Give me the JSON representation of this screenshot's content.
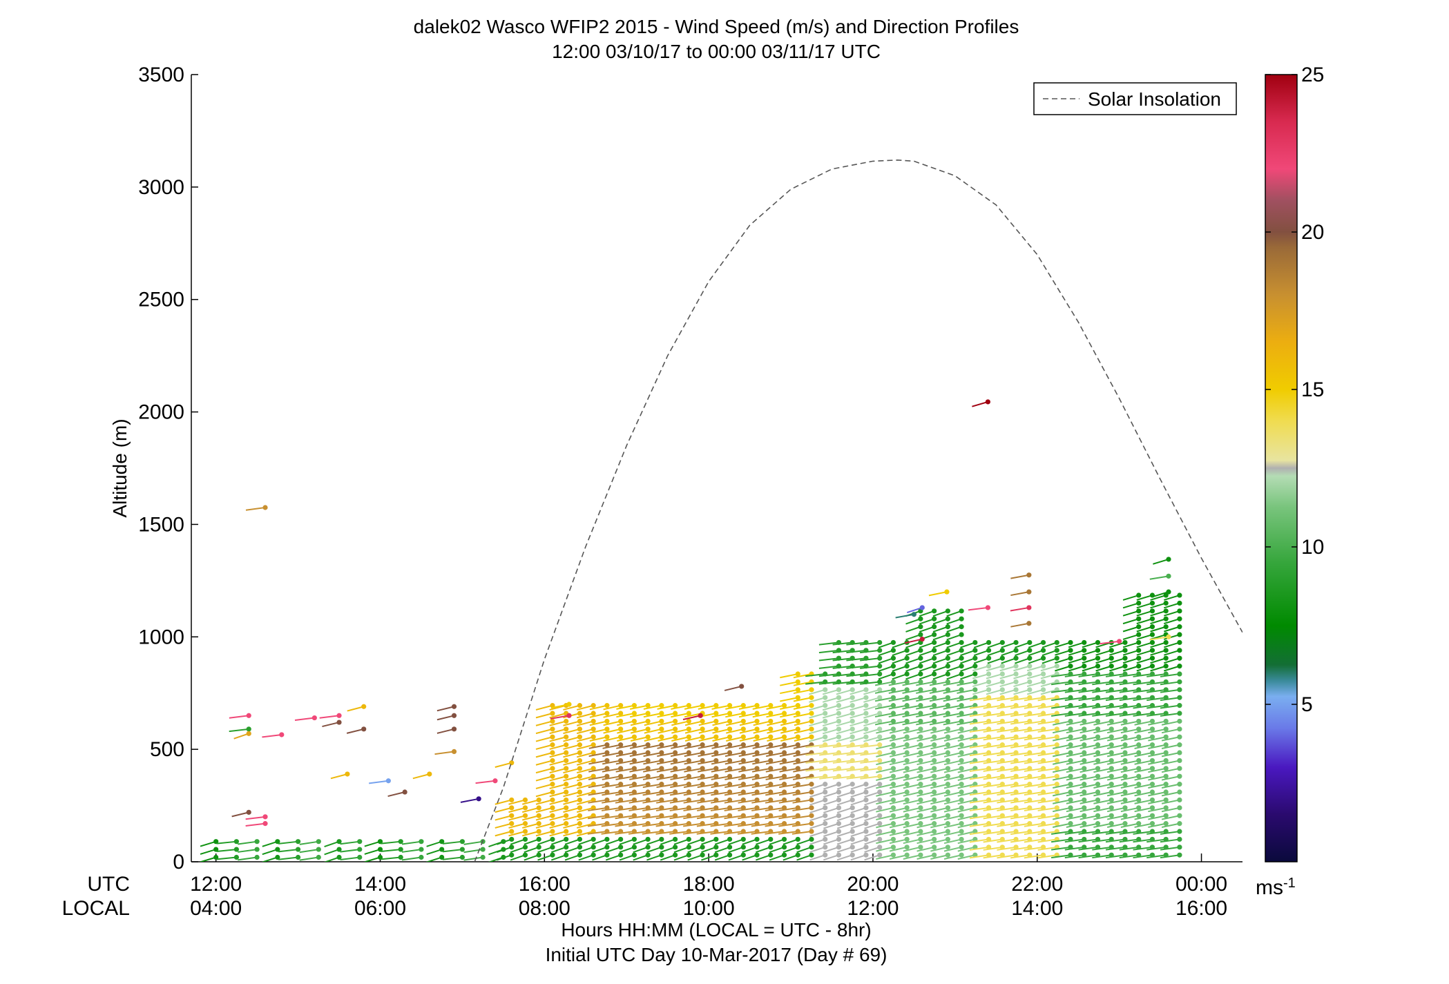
{
  "chart_data": {
    "type": "scatter",
    "title": "dalek02 Wasco WFIP2 2015 - Wind Speed (m/s) and Direction Profiles",
    "subtitle": "12:00 03/10/17 to 00:00 03/11/17  UTC",
    "ylabel": "Altitude (m)",
    "xlabel": "Hours HH:MM  (LOCAL = UTC - 8hr)",
    "xlabel2": "Initial UTC Day 10-Mar-2017 (Day # 69)",
    "row_label_utc": "UTC",
    "row_label_local": "LOCAL",
    "xlim": [
      11.7,
      24.5
    ],
    "ylim": [
      0,
      3500
    ],
    "yticks": [
      0,
      500,
      1000,
      1500,
      2000,
      2500,
      3000,
      3500
    ],
    "xticks_hours": [
      12,
      14,
      16,
      18,
      20,
      22,
      24
    ],
    "xtick_labels_utc": [
      "12:00",
      "14:00",
      "16:00",
      "18:00",
      "20:00",
      "22:00",
      "00:00"
    ],
    "xtick_labels_local": [
      "04:00",
      "06:00",
      "08:00",
      "10:00",
      "12:00",
      "14:00",
      "16:00"
    ],
    "legend": {
      "label": "Solar Insolation",
      "placement": "top-right"
    },
    "colorbar": {
      "unit_label": "ms",
      "unit_exponent": "-1",
      "range": [
        0,
        25
      ],
      "ticks": [
        5,
        10,
        15,
        20,
        25
      ]
    },
    "solar_insolation_curve": {
      "hours": [
        15.15,
        15.5,
        16,
        16.5,
        17,
        17.5,
        18,
        18.5,
        19,
        19.5,
        20,
        20.3,
        20.5,
        21,
        21.5,
        22,
        22.5,
        23,
        23.5,
        24,
        24.5
      ],
      "altitude": [
        0,
        330,
        900,
        1400,
        1850,
        2250,
        2580,
        2830,
        2990,
        3080,
        3115,
        3120,
        3115,
        3050,
        2920,
        2700,
        2400,
        2060,
        1700,
        1350,
        1020
      ]
    },
    "wind_barbs_sampled": [
      {
        "hour": 12.4,
        "altitude": 650,
        "speed": 22
      },
      {
        "hour": 12.4,
        "altitude": 590,
        "speed": 9
      },
      {
        "hour": 12.4,
        "altitude": 570,
        "speed": 17
      },
      {
        "hour": 12.4,
        "altitude": 220,
        "speed": 20
      },
      {
        "hour": 12.6,
        "altitude": 200,
        "speed": 22
      },
      {
        "hour": 12.6,
        "altitude": 170,
        "speed": 22
      },
      {
        "hour": 12.6,
        "altitude": 1575,
        "speed": 18
      },
      {
        "hour": 12.8,
        "altitude": 565,
        "speed": 22
      },
      {
        "hour": 13.2,
        "altitude": 640,
        "speed": 22
      },
      {
        "hour": 13.5,
        "altitude": 650,
        "speed": 22
      },
      {
        "hour": 13.5,
        "altitude": 620,
        "speed": 20
      },
      {
        "hour": 13.8,
        "altitude": 590,
        "speed": 20
      },
      {
        "hour": 13.8,
        "altitude": 690,
        "speed": 16
      },
      {
        "hour": 13.6,
        "altitude": 390,
        "speed": 16
      },
      {
        "hour": 14.1,
        "altitude": 360,
        "speed": 5
      },
      {
        "hour": 14.3,
        "altitude": 310,
        "speed": 20
      },
      {
        "hour": 14.6,
        "altitude": 390,
        "speed": 16
      },
      {
        "hour": 14.9,
        "altitude": 690,
        "speed": 20
      },
      {
        "hour": 14.9,
        "altitude": 650,
        "speed": 20
      },
      {
        "hour": 14.9,
        "altitude": 590,
        "speed": 20
      },
      {
        "hour": 14.9,
        "altitude": 490,
        "speed": 18
      },
      {
        "hour": 15.2,
        "altitude": 280,
        "speed": 2
      },
      {
        "hour": 15.4,
        "altitude": 360,
        "speed": 22
      },
      {
        "hour": 15.6,
        "altitude": 440,
        "speed": 16
      },
      {
        "hour": 16.3,
        "altitude": 650,
        "speed": 23
      },
      {
        "hour": 16.3,
        "altitude": 700,
        "speed": 15
      },
      {
        "hour": 18.4,
        "altitude": 780,
        "speed": 20
      },
      {
        "hour": 17.9,
        "altitude": 650,
        "speed": 24
      },
      {
        "hour": 20.5,
        "altitude": 1100,
        "speed": 6
      },
      {
        "hour": 20.6,
        "altitude": 1130,
        "speed": 4
      },
      {
        "hour": 20.6,
        "altitude": 990,
        "speed": 24
      },
      {
        "hour": 20.9,
        "altitude": 1200,
        "speed": 15
      },
      {
        "hour": 21.4,
        "altitude": 2045,
        "speed": 25
      },
      {
        "hour": 21.4,
        "altitude": 1130,
        "speed": 22
      },
      {
        "hour": 21.9,
        "altitude": 1275,
        "speed": 19
      },
      {
        "hour": 21.9,
        "altitude": 1200,
        "speed": 19
      },
      {
        "hour": 21.9,
        "altitude": 1130,
        "speed": 23
      },
      {
        "hour": 21.9,
        "altitude": 1060,
        "speed": 19
      },
      {
        "hour": 23.0,
        "altitude": 980,
        "speed": 22
      },
      {
        "hour": 23.6,
        "altitude": 1345,
        "speed": 8
      },
      {
        "hour": 23.6,
        "altitude": 1270,
        "speed": 10
      },
      {
        "hour": 23.6,
        "altitude": 1200,
        "speed": 8
      },
      {
        "hour": 23.6,
        "altitude": 1000,
        "speed": 14
      }
    ],
    "grid": false
  }
}
